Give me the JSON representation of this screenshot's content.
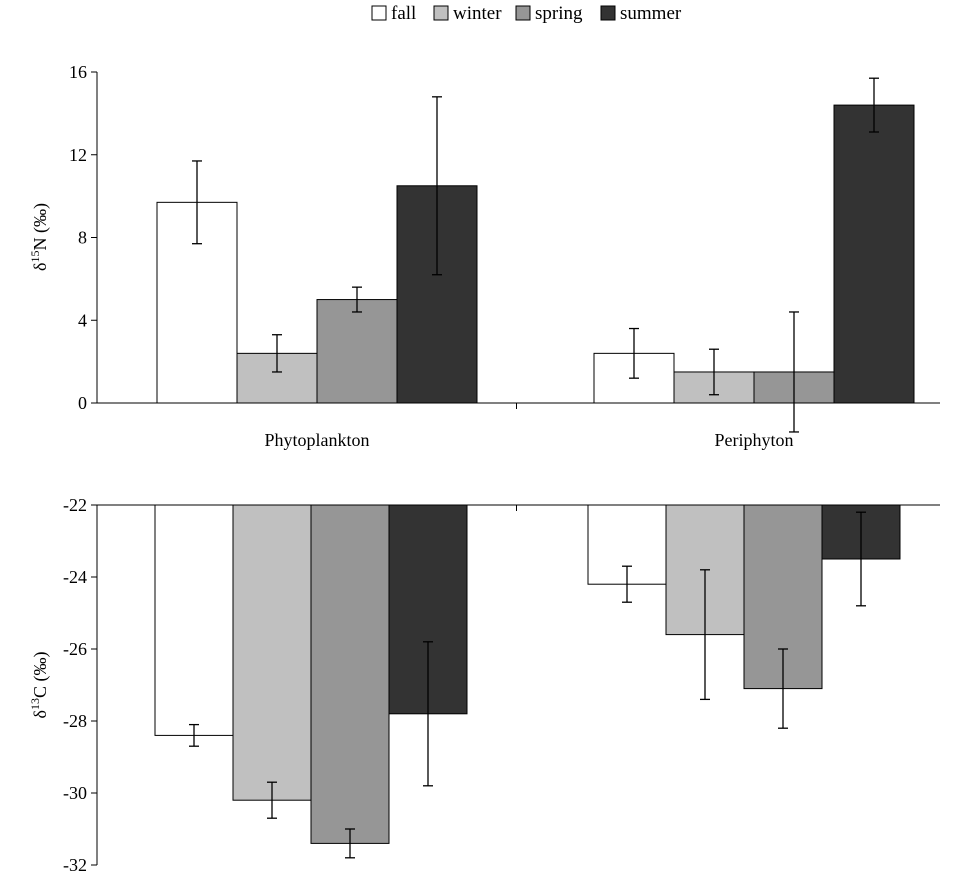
{
  "legend": {
    "items": [
      {
        "label": "fall",
        "color": "#ffffff"
      },
      {
        "label": "winter",
        "color": "#c0c0c0"
      },
      {
        "label": "spring",
        "color": "#969696"
      },
      {
        "label": "summer",
        "color": "#333333"
      }
    ]
  },
  "chart_data": [
    {
      "type": "bar",
      "title": "",
      "ylabel": "δ15N (‰)",
      "xlabel": "",
      "categories": [
        "Phytoplankton",
        "Periphyton"
      ],
      "series": [
        {
          "name": "fall",
          "color": "#ffffff",
          "values": [
            9.7,
            2.4
          ],
          "errors": [
            2.0,
            1.2
          ]
        },
        {
          "name": "winter",
          "color": "#c0c0c0",
          "values": [
            2.4,
            1.5
          ],
          "errors": [
            0.9,
            1.1
          ]
        },
        {
          "name": "spring",
          "color": "#969696",
          "values": [
            5.0,
            1.5
          ],
          "errors": [
            0.6,
            2.9
          ]
        },
        {
          "name": "summer",
          "color": "#333333",
          "values": [
            10.5,
            14.4
          ],
          "errors": [
            4.3,
            1.3
          ]
        }
      ],
      "ylim": [
        0,
        16
      ],
      "yticks": [
        0,
        4,
        8,
        12,
        16
      ],
      "grid": false,
      "legend_position": "top"
    },
    {
      "type": "bar",
      "title": "",
      "ylabel": "δ13C (‰)",
      "xlabel": "",
      "categories": [
        "Phytoplankton",
        "Periphyton"
      ],
      "series": [
        {
          "name": "fall",
          "color": "#ffffff",
          "values": [
            -28.4,
            -24.2
          ],
          "errors": [
            0.3,
            0.5
          ]
        },
        {
          "name": "winter",
          "color": "#c0c0c0",
          "values": [
            -30.2,
            -25.6
          ],
          "errors": [
            0.5,
            1.8
          ]
        },
        {
          "name": "spring",
          "color": "#969696",
          "values": [
            -31.4,
            -27.1
          ],
          "errors": [
            0.4,
            1.1
          ]
        },
        {
          "name": "summer",
          "color": "#333333",
          "values": [
            -27.8,
            -23.5
          ],
          "errors": [
            2.0,
            1.3
          ]
        }
      ],
      "ylim": [
        -32,
        -22
      ],
      "yticks": [
        -32,
        -30,
        -28,
        -26,
        -24,
        -22
      ],
      "grid": false
    }
  ]
}
